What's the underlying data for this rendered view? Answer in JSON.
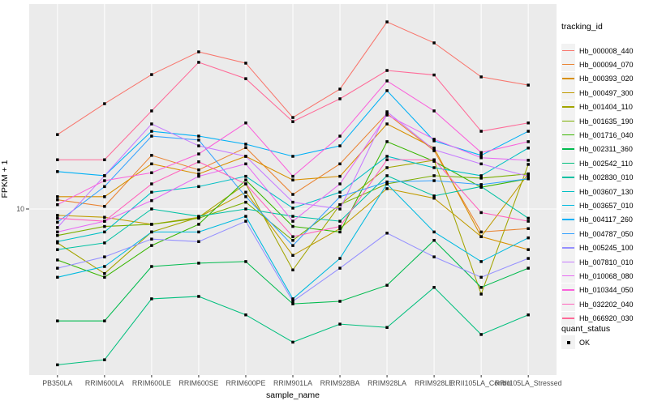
{
  "chart_data": {
    "type": "line",
    "title": "",
    "xlabel": "sample_name",
    "ylabel": "FPKM + 1",
    "y_scale": "log10",
    "grid": true,
    "legend_position": "right",
    "legend_title": "tracking_id",
    "marker": "black-square",
    "y_ticks": [
      {
        "label": "10",
        "value": 10
      }
    ],
    "x_categories": [
      "PB350LA",
      "RRIM600LA",
      "RRIM600LE",
      "RRIM600SE",
      "RRIM600PE",
      "RRIM901LA",
      "RRIM928BA",
      "RRIM928LA",
      "RRIM928LE",
      "RRII105LA_Control",
      "RRII105LA_Stressed"
    ],
    "series": [
      {
        "name": "Hb_000008_440",
        "color": "#F8766D",
        "values": [
          23.3,
          33.1,
          46.1,
          59.7,
          52.5,
          28.3,
          39.1,
          83.9,
          66.1,
          44.9,
          40.9
        ]
      },
      {
        "name": "Hb_000094_070",
        "color": "#EA8331",
        "values": [
          11.1,
          10.3,
          18.4,
          15.6,
          20.1,
          11.8,
          16.7,
          29.6,
          19.4,
          7.7,
          8.0
        ]
      },
      {
        "name": "Hb_000393_020",
        "color": "#D89000",
        "values": [
          11.5,
          11.5,
          16.7,
          14.9,
          18.2,
          13.9,
          14.5,
          26.3,
          20.0,
          7.3,
          6.3
        ]
      },
      {
        "name": "Hb_000497_300",
        "color": "#C09B00",
        "values": [
          9.3,
          9.1,
          8.4,
          9.1,
          12.1,
          5.9,
          8.0,
          12.6,
          11.3,
          7.3,
          14.9
        ]
      },
      {
        "name": "Hb_001404_110",
        "color": "#A3A500",
        "values": [
          6.8,
          4.8,
          7.7,
          9.1,
          13.3,
          5.0,
          10.5,
          16.0,
          17.4,
          3.8,
          16.6
        ]
      },
      {
        "name": "Hb_001635_190",
        "color": "#7CAE00",
        "values": [
          7.4,
          8.2,
          8.4,
          9.0,
          10.8,
          7.0,
          10.5,
          13.3,
          14.6,
          14.2,
          14.9
        ]
      },
      {
        "name": "Hb_001716_040",
        "color": "#39B600",
        "values": [
          5.6,
          4.6,
          6.6,
          8.4,
          13.9,
          8.2,
          7.7,
          21.5,
          17.2,
          12.8,
          14.1
        ]
      },
      {
        "name": "Hb_002311_360",
        "color": "#00BB4E",
        "values": [
          2.8,
          2.8,
          5.2,
          5.4,
          5.5,
          3.4,
          3.5,
          4.2,
          7.0,
          4.1,
          5.1
        ]
      },
      {
        "name": "Hb_002542_110",
        "color": "#00BF7D",
        "values": [
          1.7,
          1.8,
          3.6,
          3.7,
          3.0,
          2.2,
          2.7,
          2.6,
          4.1,
          2.4,
          3.0
        ]
      },
      {
        "name": "Hb_002830_010",
        "color": "#00C1A3",
        "values": [
          6.3,
          6.8,
          10.0,
          9.2,
          10.0,
          9.2,
          8.7,
          14.6,
          11.6,
          12.9,
          9.0
        ]
      },
      {
        "name": "Hb_003607_130",
        "color": "#00BFC4",
        "values": [
          6.9,
          7.7,
          12.1,
          12.9,
          14.5,
          10.1,
          12.1,
          18.2,
          16.0,
          14.6,
          20.0
        ]
      },
      {
        "name": "Hb_003657_010",
        "color": "#00BAE0",
        "values": [
          4.6,
          5.2,
          7.7,
          7.7,
          9.2,
          3.6,
          5.7,
          13.3,
          7.7,
          5.5,
          7.2
        ]
      },
      {
        "name": "Hb_004117_260",
        "color": "#00B0F6",
        "values": [
          15.3,
          14.6,
          24.2,
          22.9,
          20.9,
          18.2,
          20.5,
          38.4,
          21.7,
          18.4,
          24.2
        ]
      },
      {
        "name": "Hb_004787_050",
        "color": "#35A2FF",
        "values": [
          8.6,
          12.9,
          22.9,
          21.9,
          11.5,
          6.6,
          11.5,
          13.6,
          13.8,
          13.2,
          14.1
        ]
      },
      {
        "name": "Hb_005245_100",
        "color": "#9590FF",
        "values": [
          5.1,
          5.8,
          7.1,
          6.9,
          8.7,
          3.5,
          5.1,
          7.6,
          5.8,
          4.6,
          5.7
        ]
      },
      {
        "name": "Hb_007810_010",
        "color": "#C77CFF",
        "values": [
          8.1,
          14.6,
          26.3,
          20.5,
          18.2,
          10.8,
          10.0,
          30.2,
          19.6,
          16.7,
          14.5
        ]
      },
      {
        "name": "Hb_010068_080",
        "color": "#E76BF3",
        "values": [
          7.7,
          8.7,
          11.0,
          14.5,
          16.7,
          8.7,
          13.3,
          29.1,
          22.1,
          17.9,
          17.4
        ]
      },
      {
        "name": "Hb_010344_050",
        "color": "#FA62DB",
        "values": [
          10.5,
          13.8,
          15.1,
          18.7,
          26.6,
          14.5,
          22.9,
          42.9,
          30.5,
          19.0,
          21.5
        ]
      },
      {
        "name": "Hb_032202_040",
        "color": "#FF62BC",
        "values": [
          9.0,
          8.7,
          13.3,
          17.1,
          13.3,
          7.3,
          8.2,
          17.5,
          17.5,
          9.6,
          8.7
        ]
      },
      {
        "name": "Hb_066920_030",
        "color": "#FF6A98",
        "values": [
          17.5,
          17.5,
          30.5,
          53.0,
          44.0,
          27.0,
          35.0,
          48.3,
          45.9,
          24.2,
          26.6
        ]
      }
    ],
    "quant_legend": {
      "title": "quant_status",
      "items": [
        {
          "label": "OK"
        }
      ]
    }
  },
  "colors": {
    "panel_bg": "#EBEBEB",
    "grid": "#FFFFFF",
    "axis_text": "#4D4D4D",
    "tick_mark": "#333333",
    "legend_key_bg": "#F2F2F2",
    "marker": "#000000",
    "background": "#FFFFFF"
  }
}
